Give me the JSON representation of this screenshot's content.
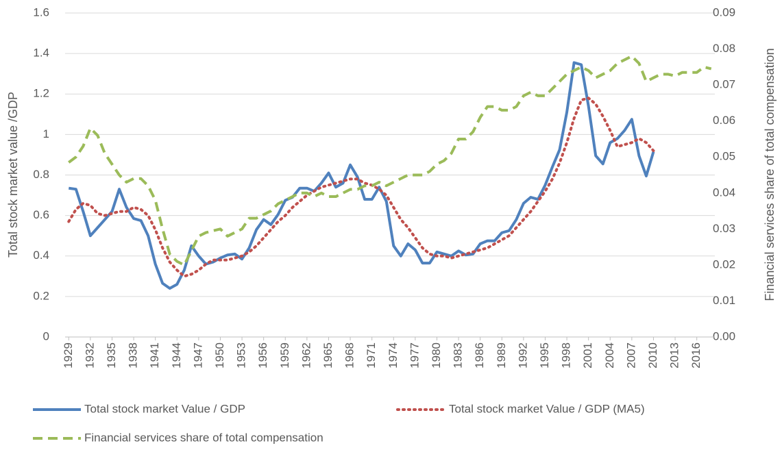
{
  "chart_data": {
    "type": "line",
    "y_label": "Total stock market value /GDP",
    "y2_label": "Financial services share of total compensation",
    "x": [
      1929,
      1930,
      1931,
      1932,
      1933,
      1934,
      1935,
      1936,
      1937,
      1938,
      1939,
      1940,
      1941,
      1942,
      1943,
      1944,
      1945,
      1946,
      1947,
      1948,
      1949,
      1950,
      1951,
      1952,
      1953,
      1954,
      1955,
      1956,
      1957,
      1958,
      1959,
      1960,
      1961,
      1962,
      1963,
      1964,
      1965,
      1966,
      1967,
      1968,
      1969,
      1970,
      1971,
      1972,
      1973,
      1974,
      1975,
      1976,
      1977,
      1978,
      1979,
      1980,
      1981,
      1982,
      1983,
      1984,
      1985,
      1986,
      1987,
      1988,
      1989,
      1990,
      1991,
      1992,
      1993,
      1994,
      1995,
      1996,
      1997,
      1998,
      1999,
      2000,
      2001,
      2002,
      2003,
      2004,
      2005,
      2006,
      2007,
      2008,
      2009,
      2010,
      2011,
      2012,
      2013,
      2014,
      2015,
      2016,
      2017,
      2018
    ],
    "xlim": [
      1928.5,
      2018.5
    ],
    "xticks": [
      1929,
      1932,
      1935,
      1938,
      1941,
      1944,
      1947,
      1950,
      1953,
      1956,
      1959,
      1962,
      1965,
      1968,
      1971,
      1974,
      1977,
      1980,
      1983,
      1986,
      1989,
      1992,
      1995,
      1998,
      2001,
      2004,
      2007,
      2010,
      2013,
      2016
    ],
    "ylim": [
      0,
      1.6
    ],
    "yticks": [
      0,
      0.2,
      0.4,
      0.6,
      0.8,
      1,
      1.2,
      1.4,
      1.6
    ],
    "y2lim": [
      0,
      0.09
    ],
    "y2ticks": [
      {
        "value": 0,
        "label": "0.00"
      },
      0.01,
      0.02,
      0.03,
      0.04,
      0.05,
      0.06,
      0.07,
      0.08,
      0.09
    ],
    "grid": true,
    "series": [
      {
        "name": "Total stock market Value / GDP",
        "color": "#4f81bd",
        "style": "solid",
        "values": [
          0.735,
          0.73,
          0.62,
          0.5,
          0.54,
          0.58,
          0.62,
          0.73,
          0.64,
          0.585,
          0.575,
          0.5,
          0.36,
          0.265,
          0.24,
          0.26,
          0.33,
          0.45,
          0.4,
          0.36,
          0.37,
          0.39,
          0.405,
          0.41,
          0.385,
          0.44,
          0.53,
          0.58,
          0.555,
          0.605,
          0.675,
          0.69,
          0.735,
          0.735,
          0.72,
          0.76,
          0.81,
          0.74,
          0.76,
          0.85,
          0.79,
          0.68,
          0.68,
          0.74,
          0.67,
          0.45,
          0.4,
          0.46,
          0.43,
          0.365,
          0.365,
          0.42,
          0.41,
          0.4,
          0.425,
          0.405,
          0.41,
          0.46,
          0.475,
          0.475,
          0.515,
          0.525,
          0.58,
          0.66,
          0.69,
          0.68,
          0.75,
          0.84,
          0.925,
          1.11,
          1.355,
          1.345,
          1.14,
          0.895,
          0.855,
          0.96,
          0.98,
          1.02,
          1.075,
          0.895,
          0.795,
          0.915,
          null,
          null,
          null,
          null,
          null,
          null,
          null,
          null
        ]
      },
      {
        "name": "Total stock market Value / GDP (MA5)",
        "color": "#c0504d",
        "style": "dotted",
        "values": [
          0.57,
          0.63,
          0.66,
          0.65,
          0.61,
          0.6,
          0.61,
          0.62,
          0.62,
          0.64,
          0.63,
          0.6,
          0.53,
          0.44,
          0.37,
          0.33,
          0.3,
          0.31,
          0.33,
          0.36,
          0.38,
          0.38,
          0.38,
          0.39,
          0.4,
          0.42,
          0.45,
          0.49,
          0.53,
          0.57,
          0.6,
          0.64,
          0.67,
          0.7,
          0.72,
          0.74,
          0.75,
          0.76,
          0.77,
          0.78,
          0.78,
          0.76,
          0.75,
          0.73,
          0.7,
          0.64,
          0.58,
          0.54,
          0.49,
          0.44,
          0.41,
          0.4,
          0.4,
          0.39,
          0.4,
          0.41,
          0.42,
          0.43,
          0.44,
          0.46,
          0.48,
          0.5,
          0.54,
          0.58,
          0.62,
          0.67,
          0.72,
          0.78,
          0.86,
          0.96,
          1.08,
          1.17,
          1.18,
          1.15,
          1.09,
          1.02,
          0.94,
          0.95,
          0.96,
          0.98,
          0.96,
          0.92,
          null,
          null,
          null,
          null,
          null,
          null,
          null,
          null
        ]
      },
      {
        "name": "Financial services share of total compensation",
        "color": "#9bbb59",
        "style": "dashed",
        "axis": "y2",
        "values": [
          0.0485,
          0.05,
          0.053,
          0.058,
          0.056,
          0.051,
          0.048,
          0.045,
          0.043,
          0.044,
          0.044,
          0.042,
          0.038,
          0.03,
          0.023,
          0.021,
          0.02,
          0.024,
          0.028,
          0.029,
          0.0295,
          0.03,
          0.028,
          0.029,
          0.03,
          0.033,
          0.033,
          0.034,
          0.035,
          0.037,
          0.038,
          0.039,
          0.04,
          0.04,
          0.039,
          0.04,
          0.039,
          0.039,
          0.04,
          0.041,
          0.041,
          0.042,
          0.042,
          0.043,
          0.042,
          0.043,
          0.044,
          0.045,
          0.045,
          0.045,
          0.046,
          0.048,
          0.049,
          0.051,
          0.055,
          0.055,
          0.057,
          0.061,
          0.064,
          0.064,
          0.063,
          0.063,
          0.064,
          0.067,
          0.068,
          0.067,
          0.067,
          0.069,
          0.071,
          0.073,
          0.074,
          0.075,
          0.074,
          0.072,
          0.073,
          0.074,
          0.076,
          0.077,
          0.078,
          0.076,
          0.071,
          0.072,
          0.073,
          0.073,
          0.0725,
          0.0735,
          0.0735,
          0.0735,
          0.075,
          0.0745
        ]
      }
    ]
  }
}
